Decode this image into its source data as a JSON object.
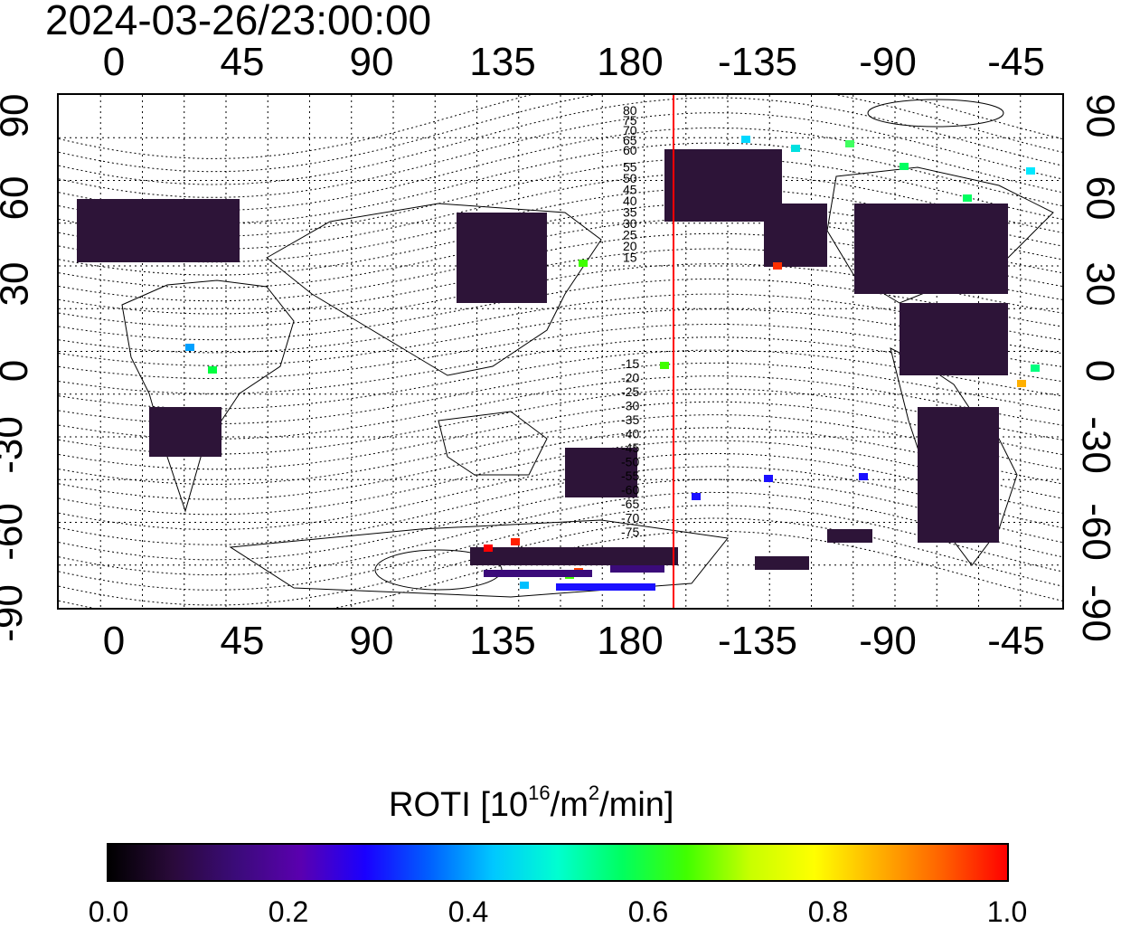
{
  "timestamp": "2024-03-26/23:00:00",
  "map": {
    "x_ticks": [
      "0",
      "45",
      "90",
      "135",
      "180",
      "-135",
      "-90",
      "-45"
    ],
    "y_ticks": [
      "90",
      "60",
      "30",
      "0",
      "-30",
      "-60",
      "-90"
    ],
    "contour_labels_north": [
      "80",
      "75",
      "70",
      "65",
      "60",
      "55",
      "50",
      "45",
      "40",
      "35",
      "30",
      "25",
      "20",
      "15"
    ],
    "contour_labels_south": [
      "-15",
      "-20",
      "-25",
      "-30",
      "-35",
      "-40",
      "-45",
      "-50",
      "-55",
      "-60",
      "-65",
      "-70",
      "-75"
    ],
    "terminator_color": "#ff0000"
  },
  "colorbar": {
    "title_main": "ROTI  [10",
    "title_exp1": "16",
    "title_mid": "/m",
    "title_exp2": "2",
    "title_end": "/min]",
    "ticks": [
      "0.0",
      "0.2",
      "0.4",
      "0.6",
      "0.8",
      "1.0"
    ],
    "colors": [
      "#000000",
      "#2a0a3a",
      "#3b0b7a",
      "#5a00b0",
      "#1a00ff",
      "#0060ff",
      "#00c8ff",
      "#00ffd0",
      "#00ff60",
      "#40ff00",
      "#c8ff00",
      "#ffff00",
      "#ffb000",
      "#ff6000",
      "#ff0000"
    ]
  }
}
